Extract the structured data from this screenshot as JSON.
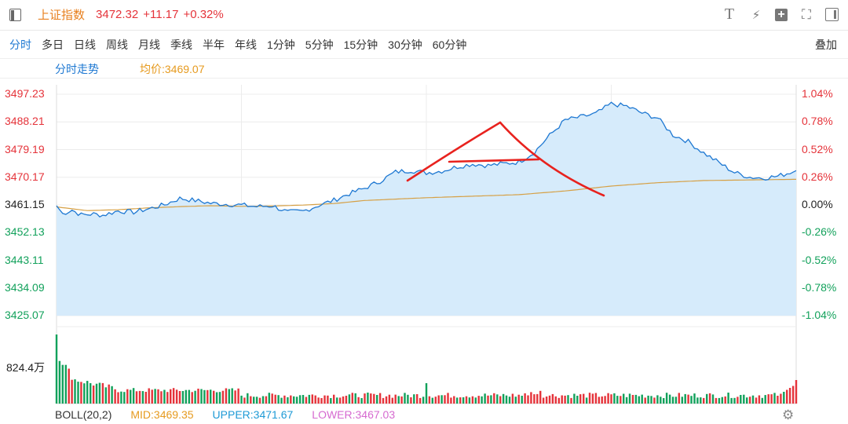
{
  "header": {
    "index_name": "上证指数",
    "index_value": "3472.32",
    "change": "+11.17",
    "change_pct": "+0.32%",
    "icons": [
      "sidebar-toggle-icon",
      "text-icon",
      "lightning-icon",
      "add-icon",
      "fullscreen-icon",
      "maximize-icon"
    ],
    "text_icon_glyph": "T",
    "lightning_glyph": "⚡",
    "plus_glyph": "+",
    "fullscreen_glyph": "⛶"
  },
  "periods": [
    "分时",
    "多日",
    "日线",
    "周线",
    "月线",
    "季线",
    "半年",
    "年线",
    "1分钟",
    "5分钟",
    "15分钟",
    "30分钟",
    "60分钟"
  ],
  "active_period": "分时",
  "overlay_label": "叠加",
  "chart_header": {
    "title": "分时走势",
    "avg_label": "均价:",
    "avg_value": "3469.07"
  },
  "volume": {
    "max_label": "824.4万"
  },
  "boll": {
    "name": "BOLL(20,2)",
    "mid": "MID:3469.35",
    "upper": "UPPER:3471.67",
    "lower": "LOWER:3467.03"
  },
  "colors": {
    "up": "#e5333a",
    "down": "#12a15b",
    "price_line": "#1e78d2",
    "price_fill": "#d6ebfb",
    "avg_line": "#d6a045",
    "accent": "#1e78d2",
    "orange": "#e8801f"
  },
  "chart_data": {
    "type": "line",
    "prev_close": 3461.15,
    "y_ticks": [
      "3497.23",
      "3488.21",
      "3479.19",
      "3470.17",
      "3461.15",
      "3452.13",
      "3443.11",
      "3434.09",
      "3425.07"
    ],
    "pct_ticks": [
      "1.04%",
      "0.78%",
      "0.52%",
      "0.26%",
      "0.00%",
      "-0.26%",
      "-0.52%",
      "-0.78%",
      "-1.04%"
    ],
    "ylim": [
      3425.07,
      3497.23
    ],
    "x_count": 241,
    "price_keypoints": [
      [
        0,
        3460.9
      ],
      [
        2,
        3458.3
      ],
      [
        5,
        3459.5
      ],
      [
        8,
        3457.9
      ],
      [
        12,
        3458.2
      ],
      [
        15,
        3457.8
      ],
      [
        20,
        3459.2
      ],
      [
        25,
        3458.8
      ],
      [
        30,
        3459.9
      ],
      [
        35,
        3461.2
      ],
      [
        40,
        3463.3
      ],
      [
        45,
        3462.6
      ],
      [
        50,
        3461.7
      ],
      [
        55,
        3461.4
      ],
      [
        60,
        3461.1
      ],
      [
        65,
        3460.6
      ],
      [
        70,
        3460.9
      ],
      [
        75,
        3458.8
      ],
      [
        80,
        3459.1
      ],
      [
        85,
        3461.0
      ],
      [
        90,
        3462.7
      ],
      [
        95,
        3464.8
      ],
      [
        100,
        3466.6
      ],
      [
        105,
        3468.9
      ],
      [
        110,
        3471.9
      ],
      [
        115,
        3472.4
      ],
      [
        120,
        3471.6
      ],
      [
        125,
        3472.2
      ],
      [
        130,
        3473.6
      ],
      [
        135,
        3474.5
      ],
      [
        140,
        3474.0
      ],
      [
        145,
        3474.6
      ],
      [
        150,
        3475.1
      ],
      [
        155,
        3478.3
      ],
      [
        160,
        3483.8
      ],
      [
        165,
        3488.8
      ],
      [
        170,
        3489.8
      ],
      [
        175,
        3490.9
      ],
      [
        180,
        3494.1
      ],
      [
        185,
        3493.3
      ],
      [
        190,
        3491.1
      ],
      [
        195,
        3489.5
      ],
      [
        200,
        3484.0
      ],
      [
        205,
        3481.8
      ],
      [
        210,
        3478.1
      ],
      [
        215,
        3474.9
      ],
      [
        220,
        3471.7
      ],
      [
        225,
        3470.2
      ],
      [
        229,
        3469.9
      ],
      [
        234,
        3470.5
      ],
      [
        240,
        3472.32
      ]
    ],
    "avg_keypoints": [
      [
        0,
        3460.5
      ],
      [
        10,
        3459.3
      ],
      [
        20,
        3459.6
      ],
      [
        30,
        3460.2
      ],
      [
        40,
        3460.6
      ],
      [
        50,
        3460.9
      ],
      [
        60,
        3460.7
      ],
      [
        70,
        3460.8
      ],
      [
        80,
        3461.1
      ],
      [
        90,
        3461.6
      ],
      [
        100,
        3462.6
      ],
      [
        120,
        3463.5
      ],
      [
        150,
        3464.5
      ],
      [
        165,
        3465.7
      ],
      [
        180,
        3467.3
      ],
      [
        195,
        3468.4
      ],
      [
        210,
        3469.1
      ],
      [
        225,
        3469.3
      ],
      [
        240,
        3469.5
      ]
    ]
  },
  "annotation": {
    "type": "hand-drawn-triangle",
    "color": "#e8221e"
  }
}
